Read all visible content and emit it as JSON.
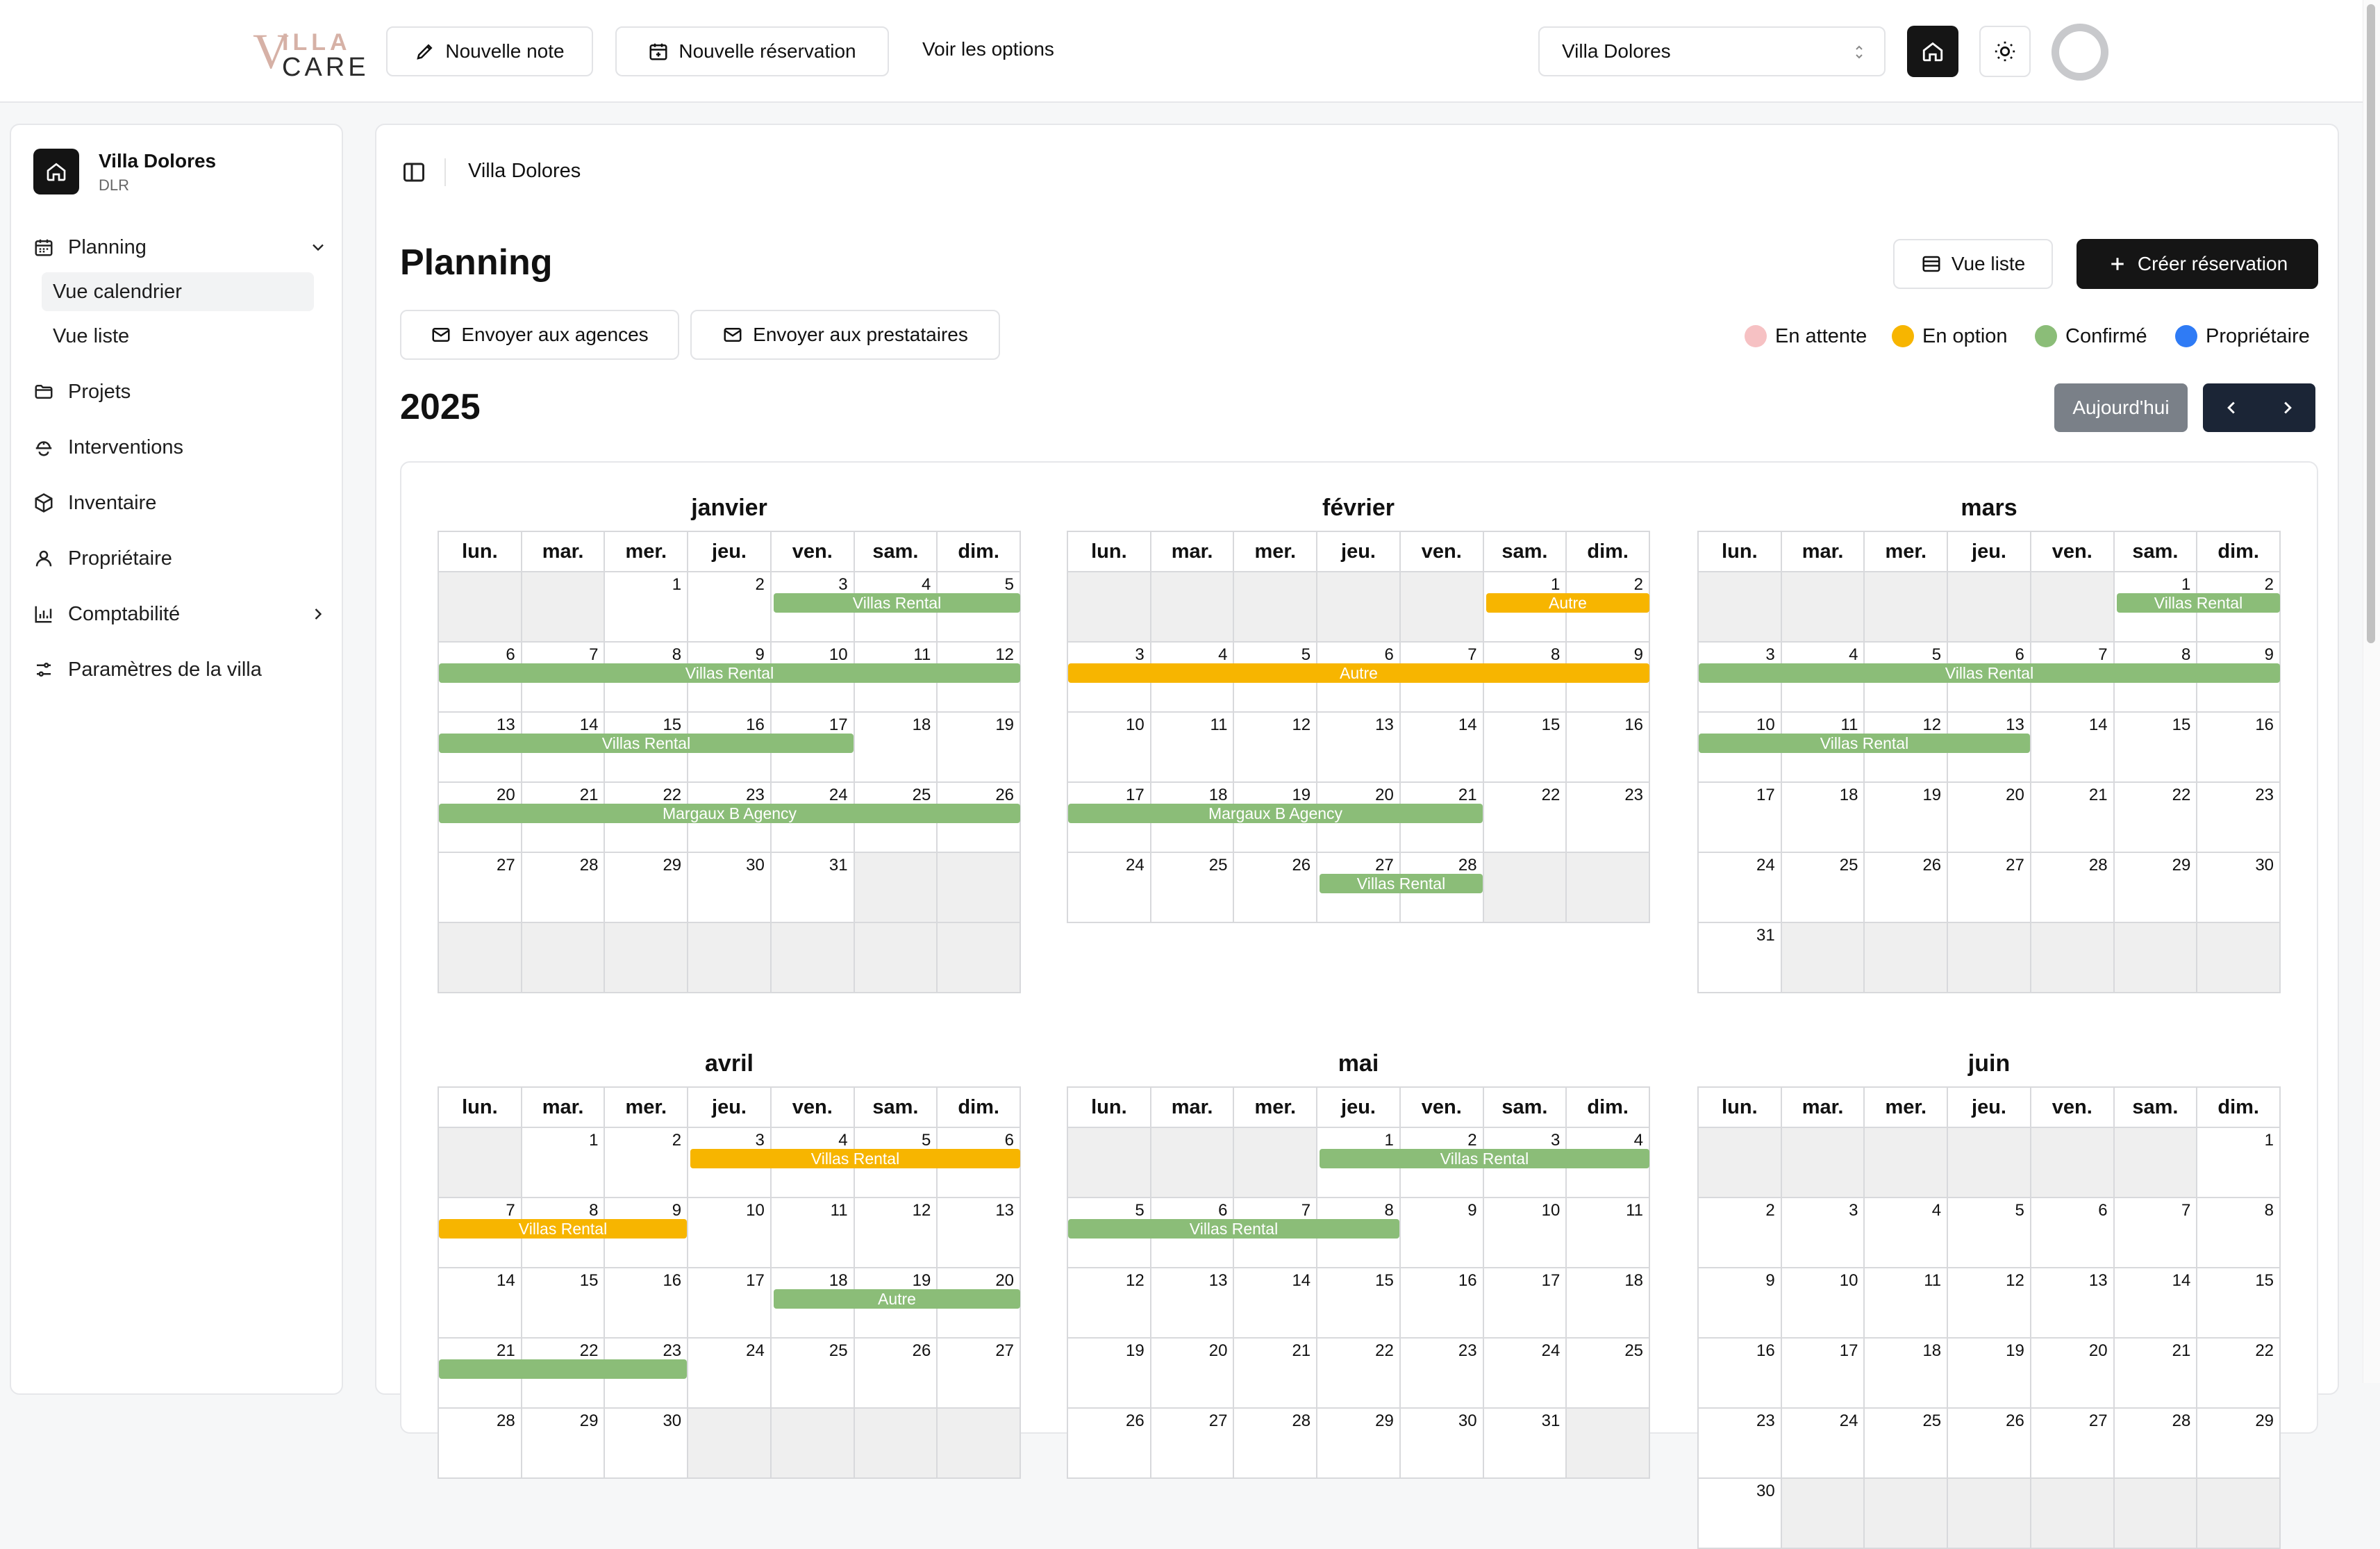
{
  "header": {
    "logo": {
      "v": "V",
      "illa": "ILLA",
      "care": "CARE"
    },
    "new_note": "Nouvelle note",
    "new_booking": "Nouvelle réservation",
    "options_link": "Voir les options",
    "villa_select": "Villa Dolores"
  },
  "sidebar": {
    "villa_name": "Villa Dolores",
    "villa_code": "DLR",
    "planning": "Planning",
    "calendar_view": "Vue calendrier",
    "list_view": "Vue liste",
    "projects": "Projets",
    "interventions": "Interventions",
    "inventory": "Inventaire",
    "owner": "Propriétaire",
    "accounting": "Comptabilité",
    "villa_settings": "Paramètres de la villa"
  },
  "main": {
    "breadcrumb": "Villa Dolores",
    "title": "Planning",
    "list_view_btn": "Vue liste",
    "create_btn": "Créer réservation",
    "send_agencies": "Envoyer aux agences",
    "send_providers": "Envoyer aux prestataires",
    "year": "2025",
    "today_btn": "Aujourd'hui"
  },
  "legend": [
    {
      "label": "En attente",
      "color": "#f6c1c3"
    },
    {
      "label": "En option",
      "color": "#f7b500"
    },
    {
      "label": "Confirmé",
      "color": "#8bbd78"
    },
    {
      "label": "Propriétaire",
      "color": "#2f7bf5"
    }
  ],
  "colors": {
    "confirmed": "#8bbd78",
    "option": "#f7b500",
    "pending": "#f6c1c3",
    "owner": "#2f7bf5"
  },
  "weekdays": [
    "lun.",
    "mar.",
    "mer.",
    "jeu.",
    "ven.",
    "sam.",
    "dim."
  ],
  "months": [
    {
      "name": "janvier",
      "offset": 2,
      "days": 31,
      "weeks": 6,
      "bookings": [
        {
          "week": 0,
          "start": 4,
          "end": 6,
          "label": "Villas Rental",
          "status": "confirmed"
        },
        {
          "week": 1,
          "start": 0,
          "end": 6,
          "label": "Villas Rental",
          "status": "confirmed"
        },
        {
          "week": 2,
          "start": 0,
          "end": 4,
          "label": "Villas Rental",
          "status": "confirmed"
        },
        {
          "week": 3,
          "start": 0,
          "end": 6,
          "label": "Margaux B Agency",
          "status": "confirmed"
        }
      ]
    },
    {
      "name": "février",
      "offset": 5,
      "days": 28,
      "weeks": 5,
      "bookings": [
        {
          "week": 0,
          "start": 5,
          "end": 6,
          "label": "Autre",
          "status": "option"
        },
        {
          "week": 1,
          "start": 0,
          "end": 6,
          "label": "Autre",
          "status": "option"
        },
        {
          "week": 3,
          "start": 0,
          "end": 4,
          "label": "Margaux B Agency",
          "status": "confirmed"
        },
        {
          "week": 4,
          "start": 3,
          "end": 4,
          "label": "Villas Rental",
          "status": "confirmed"
        }
      ]
    },
    {
      "name": "mars",
      "offset": 5,
      "days": 31,
      "weeks": 6,
      "bookings": [
        {
          "week": 0,
          "start": 5,
          "end": 6,
          "label": "Villas Rental",
          "status": "confirmed"
        },
        {
          "week": 1,
          "start": 0,
          "end": 6,
          "label": "Villas Rental",
          "status": "confirmed"
        },
        {
          "week": 2,
          "start": 0,
          "end": 3,
          "label": "Villas Rental",
          "status": "confirmed"
        }
      ]
    },
    {
      "name": "avril",
      "offset": 1,
      "days": 30,
      "weeks": 5,
      "bookings": [
        {
          "week": 0,
          "start": 3,
          "end": 6,
          "label": "Villas Rental",
          "status": "option"
        },
        {
          "week": 1,
          "start": 0,
          "end": 2,
          "label": "Villas Rental",
          "status": "option"
        },
        {
          "week": 2,
          "start": 4,
          "end": 6,
          "label": "Autre",
          "status": "confirmed"
        },
        {
          "week": 3,
          "start": 0,
          "end": 2,
          "label": "",
          "status": "confirmed"
        }
      ]
    },
    {
      "name": "mai",
      "offset": 3,
      "days": 31,
      "weeks": 5,
      "bookings": [
        {
          "week": 0,
          "start": 3,
          "end": 6,
          "label": "Villas Rental",
          "status": "confirmed"
        },
        {
          "week": 1,
          "start": 0,
          "end": 3,
          "label": "Villas Rental",
          "status": "confirmed"
        }
      ]
    },
    {
      "name": "juin",
      "offset": 6,
      "days": 30,
      "weeks": 6,
      "bookings": []
    }
  ]
}
